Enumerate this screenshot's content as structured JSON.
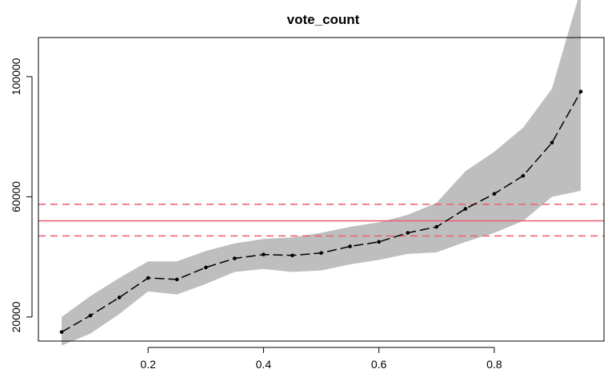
{
  "chart_data": {
    "type": "line",
    "title": "vote_count",
    "xlabel": "",
    "ylabel": "",
    "xlim": [
      0.05,
      0.95
    ],
    "ylim": [
      12000,
      113000
    ],
    "x_ticks": [
      0.2,
      0.4,
      0.6,
      0.8
    ],
    "x_tick_labels": [
      "0.2",
      "0.4",
      "0.6",
      "0.8"
    ],
    "y_ticks": [
      20000,
      60000,
      100000
    ],
    "y_tick_labels": [
      "20000",
      "60000",
      "100000"
    ],
    "grid": false,
    "legend": "none",
    "series": [
      {
        "x": [
          0.05,
          0.1,
          0.15,
          0.2,
          0.25,
          0.3,
          0.35,
          0.4,
          0.45,
          0.5,
          0.55,
          0.6,
          0.65,
          0.7,
          0.75,
          0.8,
          0.85,
          0.9,
          0.95
        ],
        "values": [
          15000,
          20500,
          26500,
          33000,
          32500,
          36500,
          39500,
          40800,
          40500,
          41300,
          43500,
          45000,
          48000,
          50000,
          56000,
          61000,
          67000,
          78000,
          95000
        ],
        "lower": [
          10500,
          14500,
          21000,
          28500,
          27500,
          31000,
          35000,
          36000,
          35000,
          35500,
          37500,
          39000,
          41000,
          41500,
          45000,
          48000,
          52000,
          60000,
          62000
        ],
        "upper": [
          20000,
          27000,
          33000,
          38500,
          38500,
          42000,
          44500,
          46000,
          46500,
          48000,
          50000,
          51500,
          54000,
          58000,
          68500,
          75000,
          83000,
          96000,
          129000
        ]
      }
    ],
    "reference_lines": {
      "mean": 52000,
      "lower": 47000,
      "upper": 57500
    },
    "colors": {
      "band": "#bebebe",
      "line": "#000000",
      "reference": "#ee5a6f"
    }
  }
}
